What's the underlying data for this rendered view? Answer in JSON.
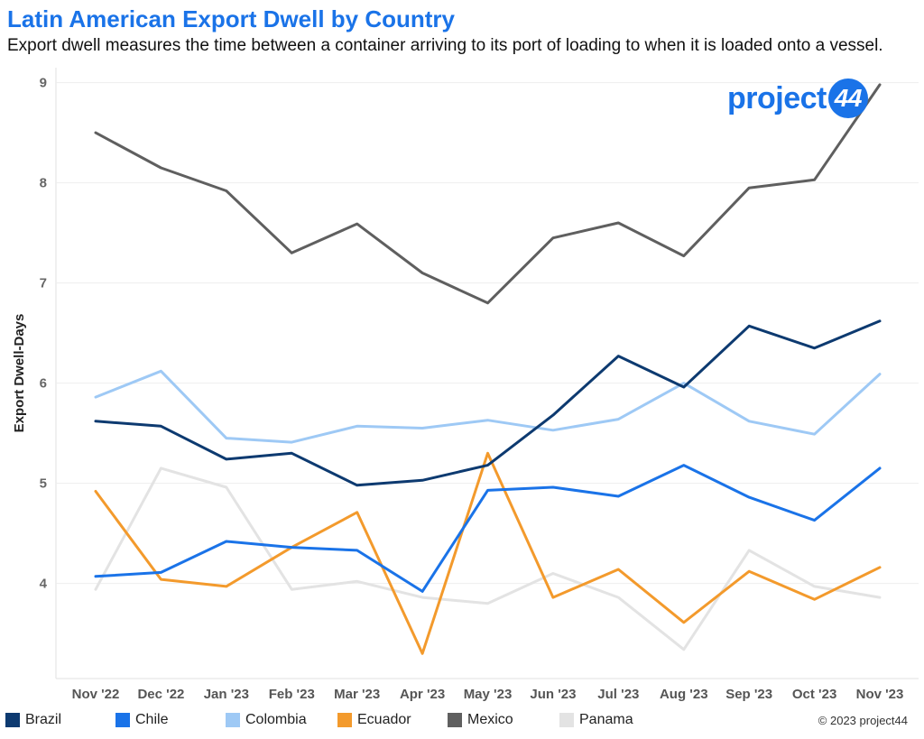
{
  "title": "Latin American Export Dwell by Country",
  "subtitle": "Export dwell measures the time between a container arriving to its port of loading to when it is loaded onto a vessel.",
  "logo": {
    "text": "project",
    "badge": "44"
  },
  "copyright": "© 2023 project44",
  "chart_data": {
    "type": "line",
    "ylabel": "Export Dwell-Days",
    "xlabel": "",
    "ylim": [
      3.05,
      9.15
    ],
    "yticks": [
      4,
      5,
      6,
      7,
      8,
      9
    ],
    "grid": true,
    "legend_position": "bottom",
    "categories": [
      "Nov '22",
      "Dec '22",
      "Jan '23",
      "Feb '23",
      "Mar '23",
      "Apr '23",
      "May '23",
      "Jun '23",
      "Jul '23",
      "Aug '23",
      "Sep '23",
      "Oct '23",
      "Nov '23"
    ],
    "series": [
      {
        "name": "Panama",
        "color": "#e3e3e3",
        "values": [
          3.94,
          5.15,
          4.96,
          3.94,
          4.02,
          3.86,
          3.8,
          4.1,
          3.86,
          3.34,
          4.33,
          3.97,
          3.86
        ]
      },
      {
        "name": "Colombia",
        "color": "#9ec9f5",
        "values": [
          5.86,
          6.12,
          5.45,
          5.41,
          5.57,
          5.55,
          5.63,
          5.53,
          5.64,
          6.0,
          5.62,
          5.49,
          6.09
        ]
      },
      {
        "name": "Ecuador",
        "color": "#f39a2c",
        "values": [
          4.92,
          4.04,
          3.97,
          4.36,
          4.71,
          3.3,
          5.3,
          3.86,
          4.14,
          3.61,
          4.12,
          3.84,
          4.16
        ]
      },
      {
        "name": "Chile",
        "color": "#1a73e8",
        "values": [
          4.07,
          4.11,
          4.42,
          4.36,
          4.33,
          3.92,
          4.93,
          4.96,
          4.87,
          5.18,
          4.86,
          4.63,
          5.15
        ]
      },
      {
        "name": "Brazil",
        "color": "#0d3a70",
        "values": [
          5.62,
          5.57,
          5.24,
          5.3,
          4.98,
          5.03,
          5.18,
          5.68,
          6.27,
          5.96,
          6.57,
          6.35,
          6.62
        ]
      },
      {
        "name": "Mexico",
        "color": "#5f5f5f",
        "values": [
          8.5,
          8.15,
          7.92,
          7.3,
          7.59,
          7.1,
          6.8,
          7.45,
          7.6,
          7.27,
          7.95,
          8.03,
          8.98
        ]
      }
    ],
    "legend": [
      {
        "name": "Brazil",
        "color": "#0d3a70"
      },
      {
        "name": "Chile",
        "color": "#1a73e8"
      },
      {
        "name": "Colombia",
        "color": "#9ec9f5"
      },
      {
        "name": "Ecuador",
        "color": "#f39a2c"
      },
      {
        "name": "Mexico",
        "color": "#5f5f5f"
      },
      {
        "name": "Panama",
        "color": "#e3e3e3"
      }
    ]
  }
}
